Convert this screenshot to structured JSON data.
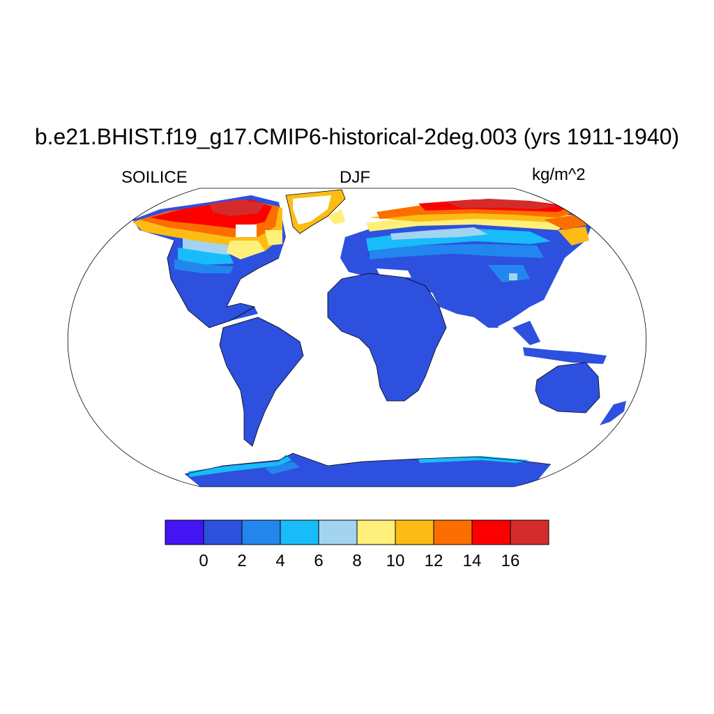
{
  "title": "b.e21.BHIST.f19_g17.CMIP6-historical-2deg.003 (yrs 1911-1940)",
  "variable": "SOILICE",
  "season": "DJF",
  "units": "kg/m^2",
  "map": {
    "projection": "Robinson",
    "ocean_color": "#ffffff",
    "coastline_color": "#000000"
  },
  "colorbar": {
    "colors": [
      "#4414f4",
      "#2d50de",
      "#2286ee",
      "#18bcf8",
      "#a2d4f2",
      "#fef07a",
      "#fcbc14",
      "#fc6e00",
      "#fc0000",
      "#d42c2c"
    ],
    "tick_labels": [
      "0",
      "2",
      "4",
      "6",
      "8",
      "10",
      "12",
      "14",
      "16"
    ]
  }
}
